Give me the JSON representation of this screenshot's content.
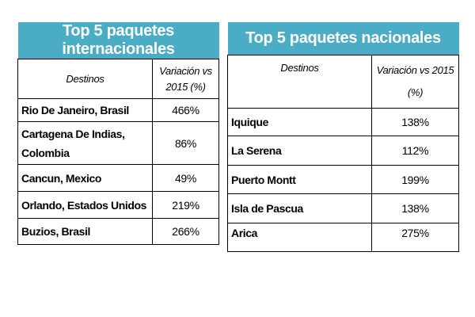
{
  "international": {
    "title": "Top 5 paquetes internacionales",
    "col_destinos": "Destinos",
    "col_variacion": "Variación vs 2015 (%)",
    "rows": [
      {
        "destino": "Rio De Janeiro, Brasil",
        "variacion": "466%"
      },
      {
        "destino": "Cartagena De Indias, Colombia",
        "variacion": "86%"
      },
      {
        "destino": "Cancun, Mexico",
        "variacion": "49%"
      },
      {
        "destino": "Orlando, Estados Unidos",
        "variacion": "219%"
      },
      {
        "destino": "Buzios, Brasil",
        "variacion": "266%"
      }
    ]
  },
  "national": {
    "title": "Top 5 paquetes nacionales",
    "col_destinos": "Destinos",
    "col_variacion": "Variación vs 2015 (%)",
    "rows": [
      {
        "destino": "Iquique",
        "variacion": "138%"
      },
      {
        "destino": "La Serena",
        "variacion": "112%"
      },
      {
        "destino": "Puerto Montt",
        "variacion": "199%"
      },
      {
        "destino": "Isla de Pascua",
        "variacion": "138%"
      },
      {
        "destino": "Arica",
        "variacion": "275%"
      }
    ]
  },
  "colors": {
    "title_bg": "#4bacc6",
    "title_text": "#ffffff",
    "border": "#000000"
  }
}
